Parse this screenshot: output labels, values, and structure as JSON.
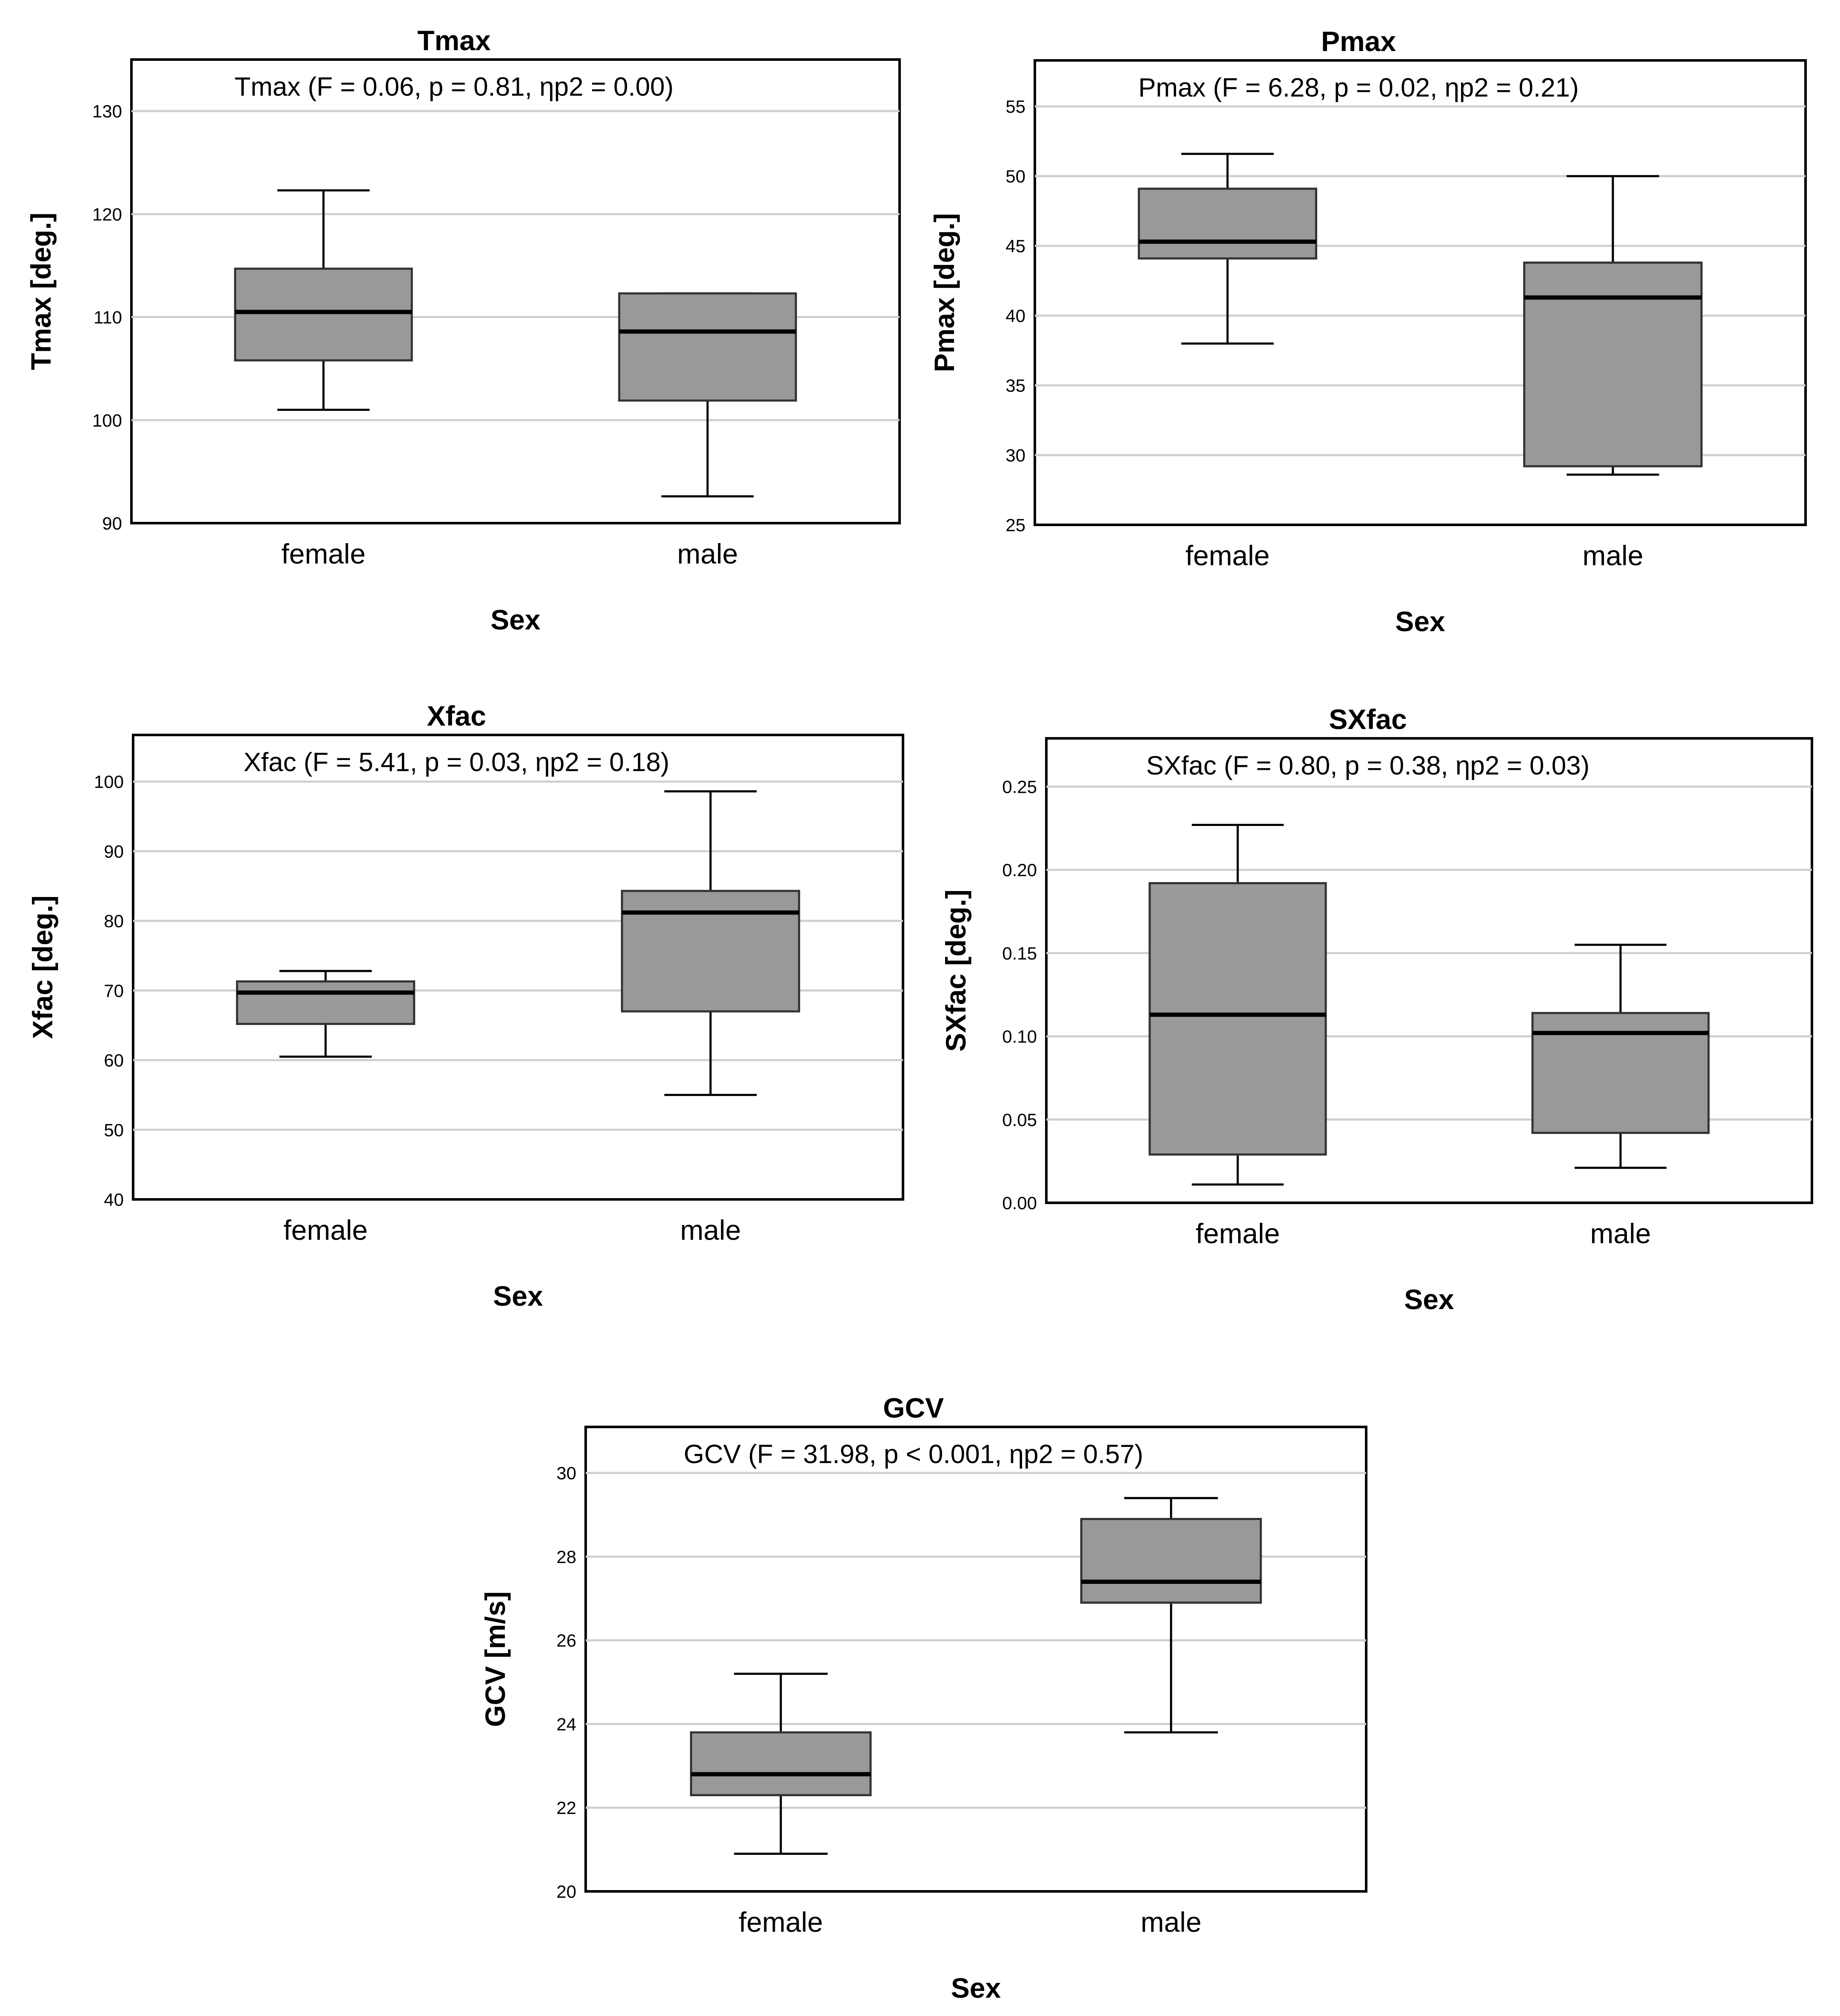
{
  "chart_data": [
    {
      "type": "boxplot",
      "title": "Tmax",
      "annotation": "Tmax (F = 0.06, p = 0.81, ηp2 = 0.00)",
      "xlabel": "Sex",
      "ylabel": "Tmax [deg.]",
      "ylim": [
        90,
        135
      ],
      "yticks": [
        90,
        100,
        110,
        120,
        130
      ],
      "ytick_labels": [
        "90",
        "100",
        "110",
        "120",
        "130"
      ],
      "categories": [
        "female",
        "male"
      ],
      "boxes": [
        {
          "min": 101,
          "q1": 105.8,
          "median": 110.5,
          "q3": 114.7,
          "max": 122.3
        },
        {
          "min": 92.6,
          "q1": 101.9,
          "median": 108.6,
          "q3": 112.3,
          "max": 112.3
        }
      ]
    },
    {
      "type": "boxplot",
      "title": "Pmax",
      "annotation": "Pmax (F = 6.28, p = 0.02, ηp2 = 0.21)",
      "xlabel": "Sex",
      "ylabel": "Pmax [deg.]",
      "ylim": [
        25,
        58.3
      ],
      "yticks": [
        25,
        30,
        35,
        40,
        45,
        50,
        55
      ],
      "ytick_labels": [
        "25",
        "30",
        "35",
        "40",
        "45",
        "50",
        "55"
      ],
      "categories": [
        "female",
        "male"
      ],
      "boxes": [
        {
          "min": 38,
          "q1": 44.1,
          "median": 45.3,
          "q3": 49.1,
          "max": 51.6
        },
        {
          "min": 28.6,
          "q1": 29.2,
          "median": 41.3,
          "q3": 43.8,
          "max": 50
        }
      ]
    },
    {
      "type": "boxplot",
      "title": "Xfac",
      "annotation": "Xfac (F = 5.41, p = 0.03, ηp2 = 0.18)",
      "xlabel": "Sex",
      "ylabel": "Xfac [deg.]",
      "ylim": [
        40,
        106.7
      ],
      "yticks": [
        40,
        50,
        60,
        70,
        80,
        90,
        100
      ],
      "ytick_labels": [
        "40",
        "50",
        "60",
        "70",
        "80",
        "90",
        "100"
      ],
      "categories": [
        "female",
        "male"
      ],
      "boxes": [
        {
          "min": 60.5,
          "q1": 65.2,
          "median": 69.7,
          "q3": 71.3,
          "max": 72.8
        },
        {
          "min": 55,
          "q1": 67,
          "median": 81.2,
          "q3": 84.3,
          "max": 98.6
        }
      ]
    },
    {
      "type": "boxplot",
      "title": "SXfac",
      "annotation": "SXfac (F = 0.80, p = 0.38, ηp2 = 0.03)",
      "xlabel": "Sex",
      "ylabel": "SXfac [deg.]",
      "ylim": [
        0,
        0.279
      ],
      "yticks": [
        0,
        0.05,
        0.1,
        0.15,
        0.2,
        0.25
      ],
      "ytick_labels": [
        "0.00",
        "0.05",
        "0.10",
        "0.15",
        "0.20",
        "0.25"
      ],
      "categories": [
        "female",
        "male"
      ],
      "boxes": [
        {
          "min": 0.011,
          "q1": 0.029,
          "median": 0.113,
          "q3": 0.192,
          "max": 0.227
        },
        {
          "min": 0.021,
          "q1": 0.042,
          "median": 0.102,
          "q3": 0.114,
          "max": 0.155
        }
      ]
    },
    {
      "type": "boxplot",
      "title": "GCV",
      "annotation": "GCV (F = 31.98, p < 0.001, ηp2 = 0.57)",
      "xlabel": "Sex",
      "ylabel": "GCV [m/s]",
      "ylim": [
        20,
        31.1
      ],
      "yticks": [
        20,
        22,
        24,
        26,
        28,
        30
      ],
      "ytick_labels": [
        "20",
        "22",
        "24",
        "26",
        "28",
        "30"
      ],
      "categories": [
        "female",
        "male"
      ],
      "boxes": [
        {
          "min": 20.9,
          "q1": 22.3,
          "median": 22.8,
          "q3": 23.8,
          "max": 25.2
        },
        {
          "min": 23.8,
          "q1": 26.9,
          "median": 27.4,
          "q3": 28.9,
          "max": 29.4
        }
      ]
    }
  ]
}
